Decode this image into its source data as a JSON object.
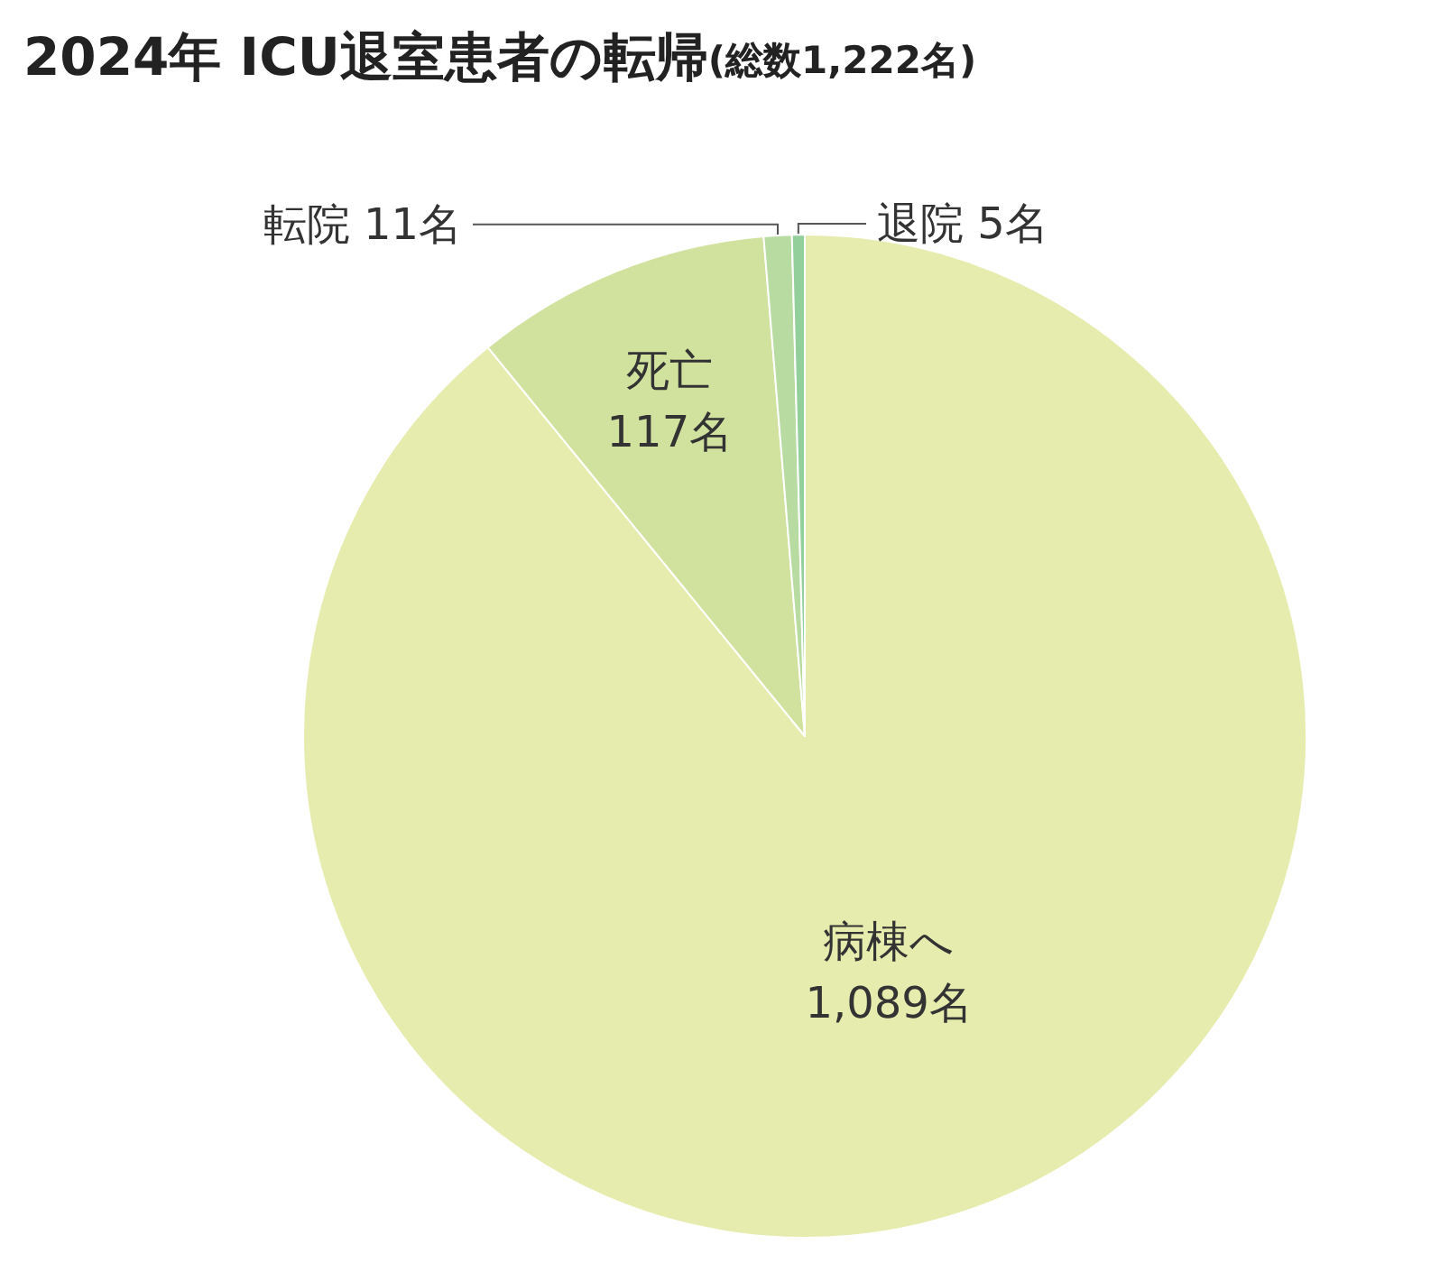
{
  "chart_data": {
    "type": "pie",
    "title": "2024年 ICU退室患者の転帰",
    "subtitle": "(総数1,222名)",
    "categories": [
      "病棟へ",
      "死亡",
      "転院",
      "退院"
    ],
    "values": [
      1089,
      117,
      11,
      5
    ],
    "value_labels": [
      "1,089名",
      "117名",
      "11名",
      "5名"
    ],
    "colors": [
      "#e6ecae",
      "#d1e29e",
      "#b7dba0",
      "#92cf9b"
    ],
    "legend": false
  }
}
